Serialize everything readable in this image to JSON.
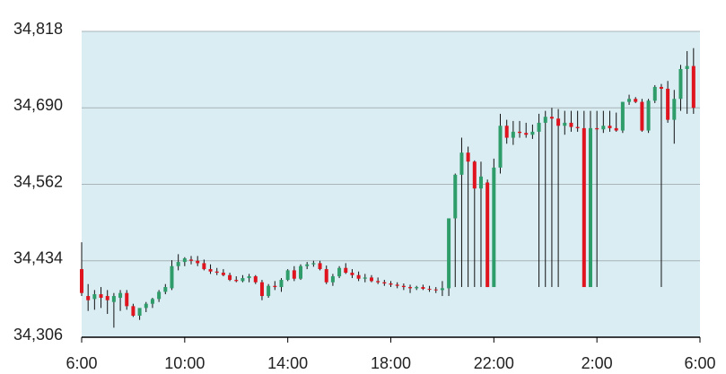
{
  "chart_data": {
    "type": "candlestick",
    "x": [
      6,
      6.25,
      6.5,
      6.75,
      7,
      7.25,
      7.5,
      7.75,
      8,
      8.25,
      8.5,
      8.75,
      9,
      9.25,
      9.5,
      9.75,
      10,
      10.25,
      10.5,
      10.75,
      11,
      11.25,
      11.5,
      11.75,
      12,
      12.25,
      12.5,
      12.75,
      13,
      13.25,
      13.5,
      13.75,
      14,
      14.25,
      14.5,
      14.75,
      15,
      15.25,
      15.5,
      15.75,
      16,
      16.25,
      16.5,
      16.75,
      17,
      17.25,
      17.5,
      17.75,
      18,
      18.25,
      18.5,
      18.75,
      19,
      19.25,
      19.5,
      19.75,
      20,
      20.25,
      20.5,
      20.75,
      21,
      21.25,
      21.5,
      21.75,
      22,
      22.25,
      22.5,
      22.75,
      23,
      23.25,
      23.5,
      23.75,
      24,
      24.25,
      24.5,
      24.75,
      25,
      25.25,
      25.5,
      25.75,
      26,
      26.25,
      26.5,
      26.75,
      27,
      27.25,
      27.5,
      27.75,
      28,
      28.25,
      28.5,
      28.75,
      29,
      29.25,
      29.5,
      29.75
    ],
    "open": [
      34420,
      34375,
      34370,
      34378,
      34375,
      34365,
      34372,
      34380,
      34358,
      34342,
      34355,
      34362,
      34370,
      34382,
      34388,
      34425,
      34432,
      34436,
      34434,
      34430,
      34420,
      34416,
      34414,
      34410,
      34402,
      34400,
      34405,
      34408,
      34398,
      34375,
      34392,
      34390,
      34402,
      34418,
      34404,
      34425,
      34428,
      34430,
      34420,
      34398,
      34408,
      34422,
      34414,
      34410,
      34404,
      34406,
      34400,
      34398,
      34396,
      34394,
      34392,
      34390,
      34388,
      34390,
      34387,
      34386,
      34385,
      34388,
      34505,
      34578,
      34615,
      34600,
      34555,
      34565,
      34390,
      34590,
      34660,
      34640,
      34650,
      34648,
      34645,
      34650,
      34665,
      34675,
      34672,
      34660,
      34665,
      34658,
      34656,
      34390,
      34656,
      34654,
      34660,
      34656,
      34652,
      34700,
      34705,
      34700,
      34652,
      34702,
      34725,
      34722,
      34670,
      34705,
      34755,
      34760
    ],
    "high": [
      34465,
      34395,
      34385,
      34390,
      34385,
      34380,
      34385,
      34385,
      34362,
      34350,
      34365,
      34372,
      34385,
      34395,
      34435,
      34445,
      34440,
      34442,
      34442,
      34436,
      34428,
      34422,
      34420,
      34414,
      34408,
      34410,
      34412,
      34410,
      34402,
      34395,
      34400,
      34405,
      34420,
      34425,
      34428,
      34432,
      34434,
      34434,
      34426,
      34412,
      34425,
      34430,
      34420,
      34416,
      34412,
      34410,
      34406,
      34402,
      34400,
      34398,
      34396,
      34394,
      34392,
      34394,
      34392,
      34390,
      34400,
      34505,
      34580,
      34640,
      34625,
      34602,
      34600,
      34570,
      34605,
      34680,
      34670,
      34668,
      34668,
      34665,
      34662,
      34680,
      34685,
      34690,
      34688,
      34685,
      34685,
      34685,
      34685,
      34685,
      34685,
      34685,
      34685,
      34682,
      34700,
      34712,
      34708,
      34705,
      34705,
      34728,
      34730,
      34735,
      34720,
      34762,
      34785,
      34790
    ],
    "low": [
      34375,
      34350,
      34352,
      34355,
      34345,
      34322,
      34350,
      34352,
      34340,
      34335,
      34348,
      34355,
      34365,
      34378,
      34385,
      34418,
      34425,
      34428,
      34425,
      34418,
      34412,
      34410,
      34408,
      34400,
      34398,
      34398,
      34398,
      34395,
      34368,
      34372,
      34385,
      34382,
      34400,
      34400,
      34402,
      34420,
      34424,
      34418,
      34395,
      34392,
      34405,
      34412,
      34405,
      34400,
      34398,
      34398,
      34395,
      34392,
      34390,
      34388,
      34385,
      34380,
      34385,
      34385,
      34382,
      34380,
      34375,
      34375,
      34390,
      34390,
      34390,
      34390,
      34390,
      34390,
      34390,
      34580,
      34630,
      34628,
      34640,
      34640,
      34638,
      34390,
      34390,
      34390,
      34390,
      34645,
      34650,
      34650,
      34390,
      34390,
      34390,
      34648,
      34650,
      34650,
      34648,
      34695,
      34698,
      34650,
      34648,
      34698,
      34390,
      34665,
      34630,
      34685,
      34680,
      34680
    ],
    "close": [
      34380,
      34368,
      34378,
      34372,
      34368,
      34375,
      34380,
      34358,
      34342,
      34355,
      34362,
      34370,
      34382,
      34390,
      34425,
      34432,
      34438,
      34434,
      34430,
      34420,
      34416,
      34414,
      34410,
      34402,
      34400,
      34405,
      34408,
      34398,
      34375,
      34392,
      34390,
      34402,
      34418,
      34404,
      34425,
      34428,
      34430,
      34420,
      34398,
      34408,
      34422,
      34414,
      34410,
      34404,
      34406,
      34400,
      34398,
      34396,
      34394,
      34392,
      34390,
      34388,
      34390,
      34387,
      34386,
      34385,
      34388,
      34505,
      34578,
      34615,
      34600,
      34555,
      34575,
      34390,
      34590,
      34660,
      34640,
      34650,
      34648,
      34645,
      34650,
      34665,
      34675,
      34672,
      34660,
      34665,
      34658,
      34656,
      34390,
      34656,
      34654,
      34660,
      34656,
      34652,
      34700,
      34705,
      34700,
      34652,
      34702,
      34725,
      34722,
      34670,
      34705,
      34755,
      34760,
      34690
    ],
    "up_color": "#2e9d6a",
    "down_color": "#e0141e",
    "xlim": [
      6,
      30
    ],
    "xticks": [
      {
        "value": 6,
        "label": "6:00"
      },
      {
        "value": 10,
        "label": "10:00"
      },
      {
        "value": 14,
        "label": "14:00"
      },
      {
        "value": 18,
        "label": "18:00"
      },
      {
        "value": 22,
        "label": "22:00"
      },
      {
        "value": 26,
        "label": "2:00"
      },
      {
        "value": 30,
        "label": "6:00"
      }
    ],
    "ylim": [
      34306,
      34818
    ],
    "yticks": [
      {
        "value": 34306,
        "label": "34,306"
      },
      {
        "value": 34434,
        "label": "34,434"
      },
      {
        "value": 34562,
        "label": "34,562"
      },
      {
        "value": 34690,
        "label": "34,690"
      },
      {
        "value": 34818,
        "label": "34,818"
      }
    ],
    "grid": true
  }
}
